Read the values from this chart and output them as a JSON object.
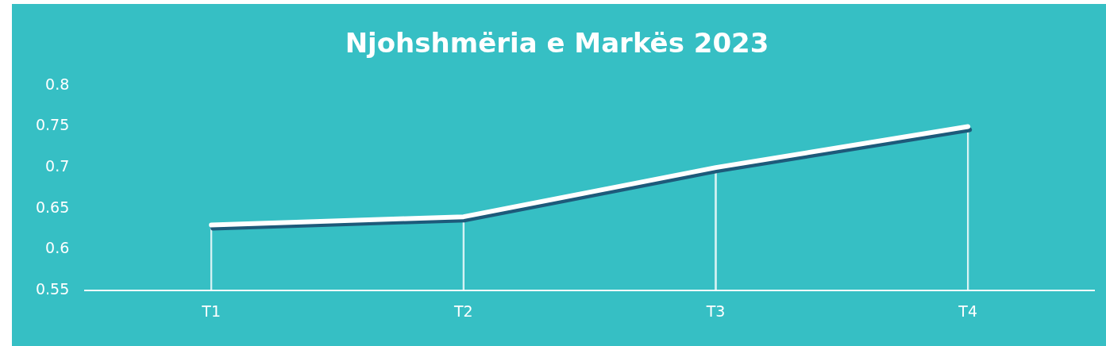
{
  "chart_data": {
    "type": "line",
    "title": "Njohshmëria e Markës 2023",
    "categories": [
      "T1",
      "T2",
      "T3",
      "T4"
    ],
    "series": [
      {
        "color": "#ffffff",
        "values": [
          0.63,
          0.64,
          0.7,
          0.75
        ]
      },
      {
        "type": "bar",
        "color": "#ffffff",
        "values": [
          0.63,
          0.64,
          0.7,
          0.75
        ]
      }
    ],
    "ylim": [
      0.55,
      0.8
    ],
    "yticks": [
      0.55,
      0.6,
      0.65,
      0.7,
      0.75,
      0.8
    ],
    "grid": false,
    "legend": false,
    "marker": "none",
    "line_style": "solid"
  }
}
